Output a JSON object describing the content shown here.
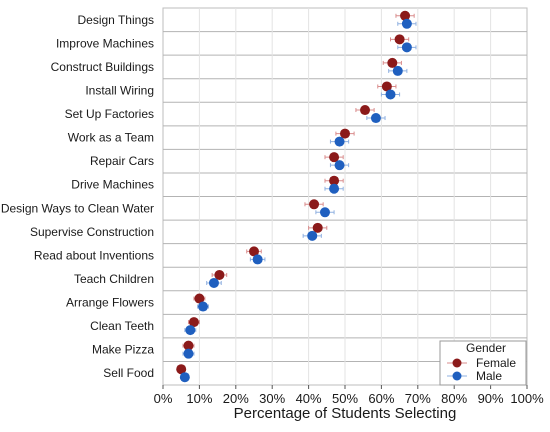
{
  "chart_data": {
    "type": "scatter",
    "xlabel": "Percentage of Students Selecting",
    "xlim": [
      0,
      100
    ],
    "x_ticks": [
      "0%",
      "10%",
      "20%",
      "30%",
      "40%",
      "50%",
      "60%",
      "70%",
      "80%",
      "90%",
      "100%"
    ],
    "categories": [
      "Design Things",
      "Improve Machines",
      "Construct Buildings",
      "Install Wiring",
      "Set Up Factories",
      "Work as a Team",
      "Repair Cars",
      "Drive Machines",
      "Design Ways to Clean Water",
      "Supervise Construction",
      "Read about Inventions",
      "Teach Children",
      "Arrange Flowers",
      "Clean Teeth",
      "Make Pizza",
      "Sell Food"
    ],
    "series": [
      {
        "name": "Female",
        "color": "#8b1a1a",
        "values": [
          66.5,
          65,
          63,
          61.5,
          55.5,
          50,
          47,
          47,
          41.5,
          42.5,
          25,
          15.5,
          10,
          8.5,
          7,
          5
        ],
        "error": [
          2.5,
          2.5,
          2.5,
          2.5,
          2.5,
          2.5,
          2.5,
          2.5,
          2.5,
          2.5,
          2,
          2,
          1.5,
          1.5,
          1.5,
          1
        ]
      },
      {
        "name": "Male",
        "color": "#1f5fbf",
        "values": [
          67,
          67,
          64.5,
          62.5,
          58.5,
          48.5,
          48.5,
          47,
          44.5,
          41,
          26,
          14,
          11,
          7.5,
          7,
          6
        ],
        "error": [
          2.5,
          2.5,
          2.5,
          2.5,
          2.5,
          2.5,
          2.5,
          2.5,
          2.5,
          2.5,
          2,
          2,
          1.5,
          1.5,
          1.5,
          1
        ]
      }
    ],
    "legend": {
      "title": "Gender",
      "position": "bottom-right"
    },
    "grid": true
  }
}
